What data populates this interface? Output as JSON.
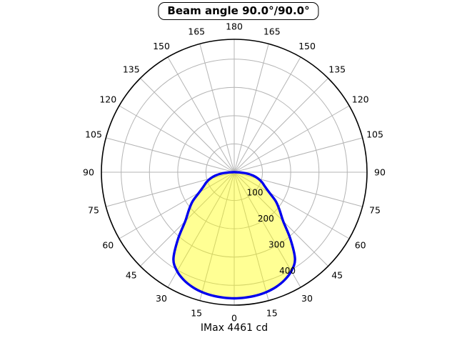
{
  "title": "Beam angle 90.0°/90.0°",
  "footer": "IMax 4461 cd",
  "chart_data": {
    "type": "polar",
    "subtype": "photometric-intensity-distribution",
    "title": "Beam angle 90.0°/90.0°",
    "beam_angle_c0_deg": 90.0,
    "beam_angle_c90_deg": 90.0,
    "imax_label": "IMax 4461 cd",
    "imax_cd": 4461,
    "zero_direction": "down",
    "angular_tick_step_deg": 15,
    "angular_labels_deg": [
      0,
      15,
      30,
      45,
      60,
      75,
      90,
      105,
      120,
      135,
      150,
      165,
      180
    ],
    "angular_label_sides": "both",
    "radial_ticks": [
      100,
      200,
      300,
      400
    ],
    "radial_axis_max": 470,
    "grid": true,
    "legend": "none",
    "series": [
      {
        "name": "luminous-intensity",
        "symmetric_mirror": true,
        "angles_deg": [
          0,
          5,
          10,
          15,
          20,
          25,
          30,
          35,
          40,
          45,
          50,
          55,
          60,
          65,
          70,
          75,
          80,
          85,
          90
        ],
        "values": [
          446,
          445,
          443,
          439,
          432,
          421,
          404,
          375,
          310,
          245,
          210,
          180,
          143,
          120,
          105,
          88,
          68,
          40,
          6
        ]
      }
    ],
    "colors": {
      "curve": "#0000ee",
      "fill": "rgba(255,255,0,0.42)",
      "fill_on_white": "#ffff99",
      "grid": "#b4b4b4",
      "outer_circle": "#000000",
      "text": "#000000",
      "background": "#ffffff"
    }
  }
}
